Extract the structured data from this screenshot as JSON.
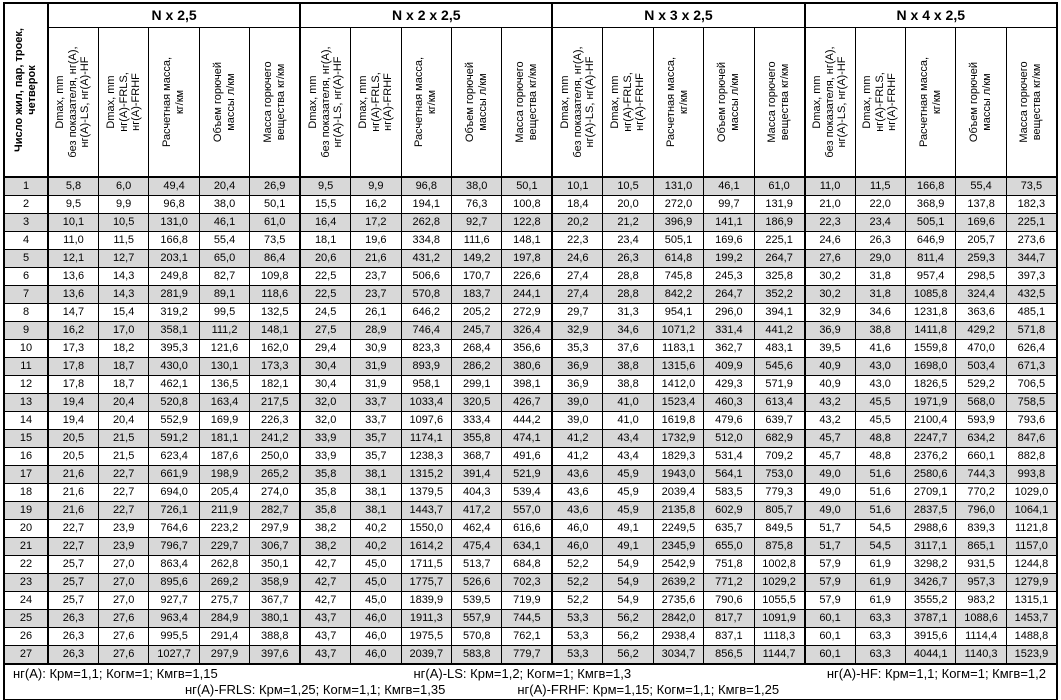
{
  "table": {
    "row_header": "Число жил, пар, троек,\nчетверок",
    "groups": [
      "N x 2,5",
      "N x 2 x 2,5",
      "N x 3 x 2,5",
      "N x 4 x 2,5"
    ],
    "sub_headers": [
      "Dmax, mm\nбез показателя, нг(А),\nнг(А)-LS, нг(А)-HF",
      "Dmax, mm\nнг(А)-FRLS,\nнг(А)-FRHF",
      "Расчетная масса,\nкг/км",
      "Объем горючей\nмассы л/км",
      "Масса горючего\nвещества кг/км"
    ],
    "rows": [
      [
        "1",
        "5,8",
        "6,0",
        "49,4",
        "20,4",
        "26,9",
        "9,5",
        "9,9",
        "96,8",
        "38,0",
        "50,1",
        "10,1",
        "10,5",
        "131,0",
        "46,1",
        "61,0",
        "11,0",
        "11,5",
        "166,8",
        "55,4",
        "73,5"
      ],
      [
        "2",
        "9,5",
        "9,9",
        "96,8",
        "38,0",
        "50,1",
        "15,5",
        "16,2",
        "194,1",
        "76,3",
        "100,8",
        "18,4",
        "20,0",
        "272,0",
        "99,7",
        "131,9",
        "21,0",
        "22,0",
        "368,9",
        "137,8",
        "182,3"
      ],
      [
        "3",
        "10,1",
        "10,5",
        "131,0",
        "46,1",
        "61,0",
        "16,4",
        "17,2",
        "262,8",
        "92,7",
        "122,8",
        "20,2",
        "21,2",
        "396,9",
        "141,1",
        "186,9",
        "22,3",
        "23,4",
        "505,1",
        "169,6",
        "225,1"
      ],
      [
        "4",
        "11,0",
        "11,5",
        "166,8",
        "55,4",
        "73,5",
        "18,1",
        "19,6",
        "334,8",
        "111,6",
        "148,1",
        "22,3",
        "23,4",
        "505,1",
        "169,6",
        "225,1",
        "24,6",
        "26,3",
        "646,9",
        "205,7",
        "273,6"
      ],
      [
        "5",
        "12,1",
        "12,7",
        "203,1",
        "65,0",
        "86,4",
        "20,6",
        "21,6",
        "431,2",
        "149,2",
        "197,8",
        "24,6",
        "26,3",
        "614,8",
        "199,2",
        "264,7",
        "27,6",
        "29,0",
        "811,4",
        "259,3",
        "344,7"
      ],
      [
        "6",
        "13,6",
        "14,3",
        "249,8",
        "82,7",
        "109,8",
        "22,5",
        "23,7",
        "506,6",
        "170,7",
        "226,6",
        "27,4",
        "28,8",
        "745,8",
        "245,3",
        "325,8",
        "30,2",
        "31,8",
        "957,4",
        "298,5",
        "397,3"
      ],
      [
        "7",
        "13,6",
        "14,3",
        "281,9",
        "89,1",
        "118,6",
        "22,5",
        "23,7",
        "570,8",
        "183,7",
        "244,1",
        "27,4",
        "28,8",
        "842,2",
        "264,7",
        "352,2",
        "30,2",
        "31,8",
        "1085,8",
        "324,4",
        "432,5"
      ],
      [
        "8",
        "14,7",
        "15,4",
        "319,2",
        "99,5",
        "132,5",
        "24,5",
        "26,1",
        "646,2",
        "205,2",
        "272,9",
        "29,7",
        "31,3",
        "954,1",
        "296,0",
        "394,1",
        "32,9",
        "34,6",
        "1231,8",
        "363,6",
        "485,1"
      ],
      [
        "9",
        "16,2",
        "17,0",
        "358,1",
        "111,2",
        "148,1",
        "27,5",
        "28,9",
        "746,4",
        "245,7",
        "326,4",
        "32,9",
        "34,6",
        "1071,2",
        "331,4",
        "441,2",
        "36,9",
        "38,8",
        "1411,8",
        "429,2",
        "571,8"
      ],
      [
        "10",
        "17,3",
        "18,2",
        "395,3",
        "121,6",
        "162,0",
        "29,4",
        "30,9",
        "823,3",
        "268,4",
        "356,6",
        "35,3",
        "37,6",
        "1183,1",
        "362,7",
        "483,1",
        "39,5",
        "41,6",
        "1559,8",
        "470,0",
        "626,4"
      ],
      [
        "11",
        "17,8",
        "18,7",
        "430,0",
        "130,1",
        "173,3",
        "30,4",
        "31,9",
        "893,9",
        "286,2",
        "380,6",
        "36,9",
        "38,8",
        "1315,6",
        "409,9",
        "545,6",
        "40,9",
        "43,0",
        "1698,0",
        "503,4",
        "671,3"
      ],
      [
        "12",
        "17,8",
        "18,7",
        "462,1",
        "136,5",
        "182,1",
        "30,4",
        "31,9",
        "958,1",
        "299,1",
        "398,1",
        "36,9",
        "38,8",
        "1412,0",
        "429,3",
        "571,9",
        "40,9",
        "43,0",
        "1826,5",
        "529,2",
        "706,5"
      ],
      [
        "13",
        "19,4",
        "20,4",
        "520,8",
        "163,4",
        "217,5",
        "32,0",
        "33,7",
        "1033,4",
        "320,5",
        "426,7",
        "39,0",
        "41,0",
        "1523,4",
        "460,3",
        "613,4",
        "43,2",
        "45,5",
        "1971,9",
        "568,0",
        "758,5"
      ],
      [
        "14",
        "19,4",
        "20,4",
        "552,9",
        "169,9",
        "226,3",
        "32,0",
        "33,7",
        "1097,6",
        "333,4",
        "444,2",
        "39,0",
        "41,0",
        "1619,8",
        "479,6",
        "639,7",
        "43,2",
        "45,5",
        "2100,4",
        "593,9",
        "793,6"
      ],
      [
        "15",
        "20,5",
        "21,5",
        "591,2",
        "181,1",
        "241,2",
        "33,9",
        "35,7",
        "1174,1",
        "355,8",
        "474,1",
        "41,2",
        "43,4",
        "1732,9",
        "512,0",
        "682,9",
        "45,7",
        "48,8",
        "2247,7",
        "634,2",
        "847,6"
      ],
      [
        "16",
        "20,5",
        "21,5",
        "623,4",
        "187,6",
        "250,0",
        "33,9",
        "35,7",
        "1238,3",
        "368,7",
        "491,6",
        "41,2",
        "43,4",
        "1829,3",
        "531,4",
        "709,2",
        "45,7",
        "48,8",
        "2376,2",
        "660,1",
        "882,8"
      ],
      [
        "17",
        "21,6",
        "22,7",
        "661,9",
        "198,9",
        "265,2",
        "35,8",
        "38,1",
        "1315,2",
        "391,4",
        "521,9",
        "43,6",
        "45,9",
        "1943,0",
        "564,1",
        "753,0",
        "49,0",
        "51,6",
        "2580,6",
        "744,3",
        "993,8"
      ],
      [
        "18",
        "21,6",
        "22,7",
        "694,0",
        "205,4",
        "274,0",
        "35,8",
        "38,1",
        "1379,5",
        "404,3",
        "539,4",
        "43,6",
        "45,9",
        "2039,4",
        "583,5",
        "779,3",
        "49,0",
        "51,6",
        "2709,1",
        "770,2",
        "1029,0"
      ],
      [
        "19",
        "21,6",
        "22,7",
        "726,1",
        "211,9",
        "282,7",
        "35,8",
        "38,1",
        "1443,7",
        "417,2",
        "557,0",
        "43,6",
        "45,9",
        "2135,8",
        "602,9",
        "805,7",
        "49,0",
        "51,6",
        "2837,5",
        "796,0",
        "1064,1"
      ],
      [
        "20",
        "22,7",
        "23,9",
        "764,6",
        "223,2",
        "297,9",
        "38,2",
        "40,2",
        "1550,0",
        "462,4",
        "616,6",
        "46,0",
        "49,1",
        "2249,5",
        "635,7",
        "849,5",
        "51,7",
        "54,5",
        "2988,6",
        "839,3",
        "1121,8"
      ],
      [
        "21",
        "22,7",
        "23,9",
        "796,7",
        "229,7",
        "306,7",
        "38,2",
        "40,2",
        "1614,2",
        "475,4",
        "634,1",
        "46,0",
        "49,1",
        "2345,9",
        "655,0",
        "875,8",
        "51,7",
        "54,5",
        "3117,1",
        "865,1",
        "1157,0"
      ],
      [
        "22",
        "25,7",
        "27,0",
        "863,4",
        "262,8",
        "350,1",
        "42,7",
        "45,0",
        "1711,5",
        "513,7",
        "684,8",
        "52,2",
        "54,9",
        "2542,9",
        "751,8",
        "1002,8",
        "57,9",
        "61,9",
        "3298,2",
        "931,5",
        "1244,8"
      ],
      [
        "23",
        "25,7",
        "27,0",
        "895,6",
        "269,2",
        "358,9",
        "42,7",
        "45,0",
        "1775,7",
        "526,6",
        "702,3",
        "52,2",
        "54,9",
        "2639,2",
        "771,2",
        "1029,2",
        "57,9",
        "61,9",
        "3426,7",
        "957,3",
        "1279,9"
      ],
      [
        "24",
        "25,7",
        "27,0",
        "927,7",
        "275,7",
        "367,7",
        "42,7",
        "45,0",
        "1839,9",
        "539,5",
        "719,9",
        "52,2",
        "54,9",
        "2735,6",
        "790,6",
        "1055,5",
        "57,9",
        "61,9",
        "3555,2",
        "983,2",
        "1315,1"
      ],
      [
        "25",
        "26,3",
        "27,6",
        "963,4",
        "284,9",
        "380,1",
        "43,7",
        "46,0",
        "1911,3",
        "557,9",
        "744,5",
        "53,3",
        "56,2",
        "2842,0",
        "817,7",
        "1091,9",
        "60,1",
        "63,3",
        "3787,1",
        "1088,6",
        "1453,7"
      ],
      [
        "26",
        "26,3",
        "27,6",
        "995,5",
        "291,4",
        "388,8",
        "43,7",
        "46,0",
        "1975,5",
        "570,8",
        "762,1",
        "53,3",
        "56,2",
        "2938,4",
        "837,1",
        "1118,3",
        "60,1",
        "63,3",
        "3915,6",
        "1114,4",
        "1488,8"
      ],
      [
        "27",
        "26,3",
        "27,6",
        "1027,7",
        "297,9",
        "397,6",
        "43,7",
        "46,0",
        "2039,7",
        "583,8",
        "779,7",
        "53,3",
        "56,2",
        "3034,7",
        "856,5",
        "1144,7",
        "60,1",
        "63,3",
        "4044,1",
        "1140,3",
        "1523,9"
      ]
    ]
  },
  "footer": {
    "line1": [
      "нг(А): Крм=1,1;  Когм=1;  Кмгв=1,15",
      "нг(А)-LS: Крм=1,2;  Когм=1;  Кмгв=1,3",
      "нг(А)-HF: Крм=1,1;  Когм=1;  Кмгв=1,2"
    ],
    "line2": [
      "нг(А)-FRLS: Крм=1,25;  Когм=1,1;  Кмгв=1,35",
      "нг(А)-FRHF: Крм=1,15;  Когм=1,1;  Кмгв=1,25"
    ]
  },
  "colors": {
    "stripe": "#d8d8d8",
    "border": "#000000",
    "background": "#ffffff"
  }
}
